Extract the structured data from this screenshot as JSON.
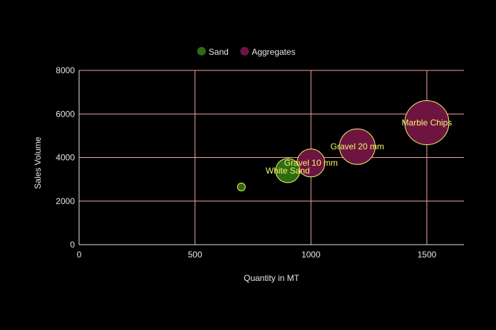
{
  "chart_data": {
    "type": "scatter",
    "variant": "bubble",
    "title": "",
    "xlabel": "Quantity in MT",
    "ylabel": "Sales Volume",
    "xlim": [
      0,
      1660
    ],
    "ylim": [
      0,
      8000
    ],
    "xticks": [
      0,
      500,
      1000,
      1500
    ],
    "yticks": [
      0,
      2000,
      4000,
      6000,
      8000
    ],
    "grid": true,
    "legend_position": "top",
    "colors": {
      "background": "#000000",
      "grid": "#f4a3a3",
      "axis": "#e6e6e6",
      "bubble_stroke": "#f5f56b",
      "label": "#f5f56b"
    },
    "series": [
      {
        "name": "Sand",
        "color": "#2f6b12",
        "points": [
          {
            "label": "",
            "x": 700,
            "y": 2650,
            "size": 10
          },
          {
            "label": "White Sand",
            "x": 900,
            "y": 3400,
            "size": 300
          }
        ]
      },
      {
        "name": "Aggregates",
        "color": "#6e1440",
        "points": [
          {
            "label": "Gravel 10 mm",
            "x": 1000,
            "y": 3750,
            "size": 400
          },
          {
            "label": "Gravel 20 mm",
            "x": 1200,
            "y": 4500,
            "size": 650
          },
          {
            "label": "Marble Chips",
            "x": 1500,
            "y": 5600,
            "size": 1000
          }
        ]
      }
    ]
  }
}
